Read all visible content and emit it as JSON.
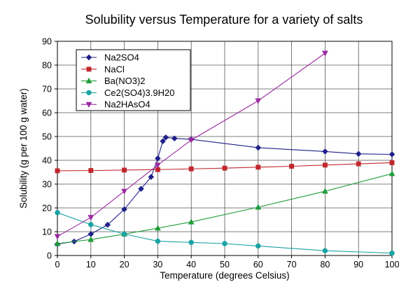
{
  "chart_data": {
    "type": "line",
    "title": "Solubility versus Temperature for a variety of salts",
    "xlabel": "Temperature (degrees Celsius)",
    "ylabel": "Solubility (g per 100 g water)",
    "xlim": [
      0,
      100
    ],
    "ylim": [
      0,
      90
    ],
    "xticks": [
      0,
      10,
      20,
      30,
      40,
      50,
      60,
      70,
      80,
      90,
      100
    ],
    "yticks": [
      0,
      10,
      20,
      30,
      40,
      50,
      60,
      70,
      80,
      90
    ],
    "grid": true,
    "legend_position": "top-left",
    "series": [
      {
        "name": "Na2SO4",
        "color": "#1f1f8a",
        "marker": "diamond",
        "x": [
          0,
          5,
          10,
          15,
          20,
          25,
          28,
          30,
          31.5,
          32.4,
          35,
          40,
          60,
          80,
          90,
          100
        ],
        "y": [
          4.8,
          5.9,
          9.0,
          12.9,
          19.4,
          28.0,
          33.0,
          40.8,
          48.0,
          49.6,
          49.2,
          48.8,
          45.3,
          43.7,
          42.7,
          42.5
        ]
      },
      {
        "name": "NaCl",
        "color": "#c0272d",
        "marker": "square",
        "x": [
          0,
          10,
          20,
          30,
          40,
          50,
          60,
          70,
          80,
          90,
          100
        ],
        "y": [
          35.6,
          35.7,
          35.9,
          36.1,
          36.4,
          36.7,
          37.1,
          37.5,
          38.0,
          38.5,
          39.0
        ]
      },
      {
        "name": "Ba(NO3)2",
        "color": "#1e9c3a",
        "marker": "triangle-up",
        "x": [
          0,
          10,
          20,
          30,
          40,
          60,
          80,
          100
        ],
        "y": [
          5.0,
          6.7,
          9.0,
          11.5,
          14.1,
          20.3,
          27.0,
          34.4
        ]
      },
      {
        "name": "Ce2(SO4)3.9H20",
        "color": "#1aa3a3",
        "marker": "circle",
        "x": [
          0,
          10,
          20,
          30,
          40,
          50,
          60,
          80,
          100
        ],
        "y": [
          18.0,
          13.0,
          9.0,
          6.0,
          5.5,
          5.0,
          4.0,
          2.0,
          1.0
        ]
      },
      {
        "name": "Na2HAsO4",
        "color": "#9b2aa0",
        "marker": "triangle-down",
        "x": [
          0,
          10,
          20,
          30,
          40,
          60,
          80
        ],
        "y": [
          8.0,
          16.0,
          27.0,
          38.0,
          48.5,
          65.0,
          85.0
        ]
      }
    ]
  }
}
